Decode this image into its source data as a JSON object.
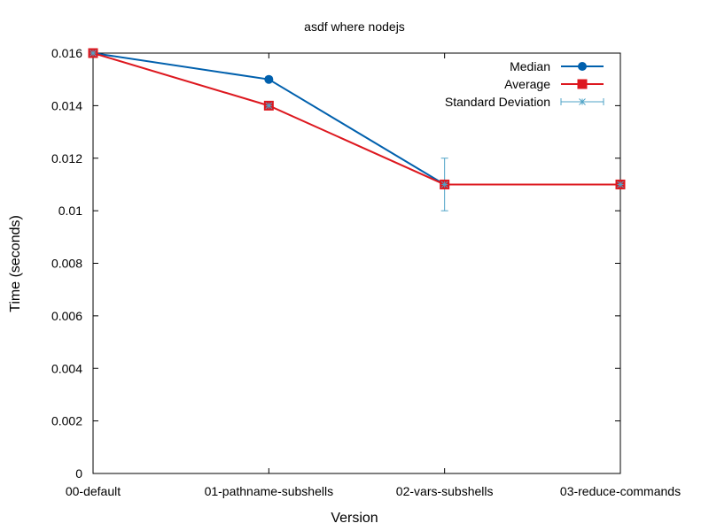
{
  "chart_data": {
    "type": "line",
    "title": "asdf where nodejs",
    "xlabel": "Version",
    "ylabel": "Time (seconds)",
    "categories": [
      "00-default",
      "01-pathname-subshells",
      "02-vars-subshells",
      "03-reduce-commands"
    ],
    "ylim": [
      0,
      0.016
    ],
    "yticks": [
      "0",
      "0.002",
      "0.004",
      "0.006",
      "0.008",
      "0.01",
      "0.012",
      "0.014",
      "0.016"
    ],
    "ytick_values": [
      0,
      0.002,
      0.004,
      0.006,
      0.008,
      0.01,
      0.012,
      0.014,
      0.016
    ],
    "grid": false,
    "legend_position": "top-right",
    "series": [
      {
        "name": "Median",
        "values": [
          0.016,
          0.015,
          0.011,
          0.011
        ],
        "color": "#0060ad",
        "marker": "circle"
      },
      {
        "name": "Average",
        "values": [
          0.016,
          0.014,
          0.011,
          0.011
        ],
        "color": "#dd181f",
        "marker": "square"
      }
    ],
    "error_series": {
      "name": "Standard Deviation",
      "color": "#4fa3c7",
      "marker": "asterisk",
      "values": [
        0.016,
        0.014,
        0.011,
        0.011
      ],
      "errors": [
        0,
        0,
        0.001,
        0
      ]
    }
  }
}
